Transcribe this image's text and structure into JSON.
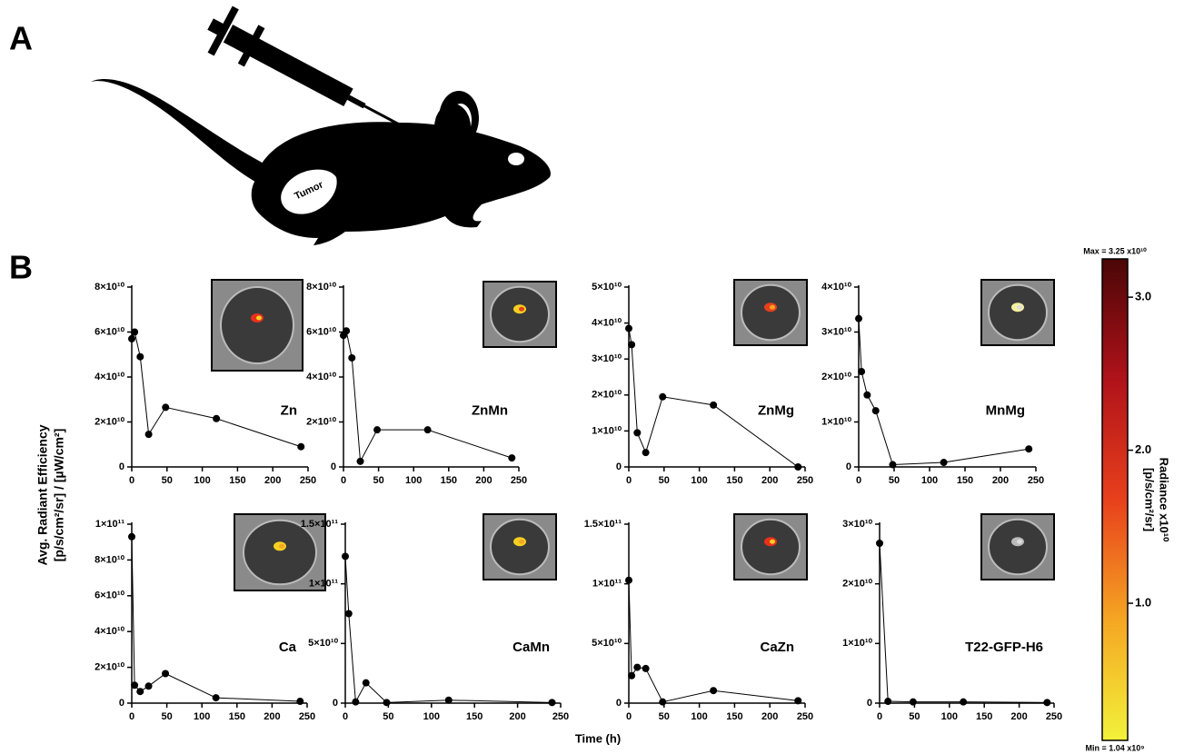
{
  "panel_labels": [
    "A",
    "B"
  ],
  "tumor_label": "Tumor",
  "y_axis_label": [
    "Avg. Radiant Efficiency",
    "[p/s/cm²/sr] / [µW/cm²]"
  ],
  "x_axis_label": "Time (h)",
  "colorbar": {
    "title": [
      "Radiance x10¹⁰",
      "[p/s/cm²/sr]"
    ],
    "max_label": "Max = 3.25 x10¹⁰",
    "min_label": "Min = 1.04 x10⁹",
    "lim": [
      0.104,
      3.25
    ],
    "ticks": [
      {
        "value": 1,
        "label": "1.0"
      },
      {
        "value": 2,
        "label": "2.0"
      },
      {
        "value": 3,
        "label": "3.0"
      }
    ],
    "colors": [
      "#f2f23a",
      "#f5a623",
      "#e8401c",
      "#b0121a",
      "#4a0606"
    ]
  },
  "chart_data": [
    {
      "type": "line",
      "title": "Zn",
      "color": "#000000",
      "x": [
        0,
        4,
        12,
        24,
        48,
        120,
        240
      ],
      "values": [
        57000000000.0,
        60000000000.0,
        49000000000.0,
        14500000000.0,
        26500000000.0,
        21500000000.0,
        9000000000.0
      ],
      "xlim": [
        0,
        250
      ],
      "ylim": [
        0,
        80000000000.0
      ],
      "xticks": [
        0,
        50,
        100,
        150,
        200,
        250
      ],
      "yticks": [
        0,
        {
          "value": 20000000000.0,
          "label": "2×10¹⁰"
        },
        {
          "value": 40000000000.0,
          "label": "4×10¹⁰"
        },
        {
          "value": 60000000000.0,
          "label": "6×10¹⁰"
        },
        {
          "value": 80000000000.0,
          "label": "8×10¹⁰"
        }
      ]
    },
    {
      "type": "line",
      "title": "ZnMn",
      "color": "#000000",
      "x": [
        0,
        4,
        12,
        24,
        48,
        120,
        240
      ],
      "values": [
        58500000000.0,
        60500000000.0,
        48500000000.0,
        2500000000.0,
        16500000000.0,
        16500000000.0,
        4000000000.0
      ],
      "xlim": [
        0,
        250
      ],
      "ylim": [
        0,
        80000000000.0
      ],
      "xticks": [
        0,
        50,
        100,
        150,
        200,
        250
      ],
      "yticks": [
        0,
        {
          "value": 20000000000.0,
          "label": "2×10¹⁰"
        },
        {
          "value": 40000000000.0,
          "label": "4×10¹⁰"
        },
        {
          "value": 60000000000.0,
          "label": "6×10¹⁰"
        },
        {
          "value": 80000000000.0,
          "label": "8×10¹⁰"
        }
      ]
    },
    {
      "type": "line",
      "title": "ZnMg",
      "color": "#000000",
      "x": [
        0,
        4,
        12,
        24,
        48,
        120,
        240
      ],
      "values": [
        38500000000.0,
        34000000000.0,
        9500000000.0,
        4000000000.0,
        19500000000.0,
        17200000000.0,
        0
      ],
      "xlim": [
        0,
        250
      ],
      "ylim": [
        0,
        50000000000.0
      ],
      "xticks": [
        0,
        50,
        100,
        150,
        200,
        250
      ],
      "yticks": [
        0,
        {
          "value": 10000000000.0,
          "label": "1×10¹⁰"
        },
        {
          "value": 20000000000.0,
          "label": "2×10¹⁰"
        },
        {
          "value": 30000000000.0,
          "label": "3×10¹⁰"
        },
        {
          "value": 40000000000.0,
          "label": "4×10¹⁰"
        },
        {
          "value": 50000000000.0,
          "label": "5×10¹⁰"
        }
      ]
    },
    {
      "type": "line",
      "title": "MnMg",
      "color": "#000000",
      "x": [
        0,
        4,
        12,
        24,
        48,
        120,
        240
      ],
      "values": [
        33000000000.0,
        21200000000.0,
        16000000000.0,
        12500000000.0,
        500000000.0,
        1000000000.0,
        4000000000.0
      ],
      "xlim": [
        0,
        250
      ],
      "ylim": [
        0,
        40000000000.0
      ],
      "xticks": [
        0,
        50,
        100,
        150,
        200,
        250
      ],
      "yticks": [
        0,
        {
          "value": 10000000000.0,
          "label": "1×10¹⁰"
        },
        {
          "value": 20000000000.0,
          "label": "2×10¹⁰"
        },
        {
          "value": 30000000000.0,
          "label": "3×10¹⁰"
        },
        {
          "value": 40000000000.0,
          "label": "4×10¹⁰"
        }
      ]
    },
    {
      "type": "line",
      "title": "Ca",
      "color": "#000000",
      "x": [
        0,
        4,
        12,
        24,
        48,
        120,
        240
      ],
      "values": [
        93000000000.0,
        10000000000.0,
        6500000000.0,
        9500000000.0,
        16500000000.0,
        3000000000.0,
        1000000000.0
      ],
      "xlim": [
        0,
        250
      ],
      "ylim": [
        0,
        100000000000.0
      ],
      "xticks": [
        0,
        50,
        100,
        150,
        200,
        250
      ],
      "yticks": [
        0,
        {
          "value": 20000000000.0,
          "label": "2×10¹⁰"
        },
        {
          "value": 40000000000.0,
          "label": "4×10¹⁰"
        },
        {
          "value": 60000000000.0,
          "label": "6×10¹⁰"
        },
        {
          "value": 80000000000.0,
          "label": "8×10¹⁰"
        },
        {
          "value": 100000000000.0,
          "label": "1×10¹¹"
        }
      ]
    },
    {
      "type": "line",
      "title": "CaMn",
      "color": "#000000",
      "x": [
        0,
        4,
        12,
        24,
        48,
        120,
        240
      ],
      "values": [
        123000000000.0,
        75000000000.0,
        1000000000.0,
        17000000000.0,
        500000000.0,
        2500000000.0,
        500000000.0
      ],
      "xlim": [
        0,
        250
      ],
      "ylim": [
        0,
        150000000000.0
      ],
      "xticks": [
        0,
        50,
        100,
        150,
        200,
        250
      ],
      "yticks": [
        0,
        {
          "value": 50000000000.0,
          "label": "5×10¹⁰"
        },
        {
          "value": 100000000000.0,
          "label": "1×10¹¹"
        },
        {
          "value": 150000000000.0,
          "label": "1.5×10¹¹"
        }
      ]
    },
    {
      "type": "line",
      "title": "CaZn",
      "color": "#000000",
      "x": [
        0,
        4,
        12,
        24,
        48,
        120,
        240
      ],
      "values": [
        103000000000.0,
        23000000000.0,
        30000000000.0,
        29000000000.0,
        1000000000.0,
        10500000000.0,
        2000000000.0
      ],
      "xlim": [
        0,
        250
      ],
      "ylim": [
        0,
        150000000000.0
      ],
      "xticks": [
        0,
        50,
        100,
        150,
        200,
        250
      ],
      "yticks": [
        0,
        {
          "value": 50000000000.0,
          "label": "5×10¹⁰"
        },
        {
          "value": 100000000000.0,
          "label": "1×10¹¹"
        },
        {
          "value": 150000000000.0,
          "label": "1.5×10¹¹"
        }
      ]
    },
    {
      "type": "line",
      "title": "T22-GFP-H6",
      "color": "#000000",
      "x": [
        0,
        12,
        48,
        120,
        240
      ],
      "values": [
        26800000000.0,
        300000000.0,
        200000000.0,
        200000000.0,
        100000000.0
      ],
      "xlim": [
        0,
        250
      ],
      "ylim": [
        0,
        30000000000.0
      ],
      "xticks": [
        0,
        50,
        100,
        150,
        200,
        250
      ],
      "yticks": [
        0,
        {
          "value": 10000000000.0,
          "label": "1×10¹⁰"
        },
        {
          "value": 20000000000.0,
          "label": "2×10¹⁰"
        },
        {
          "value": 30000000000.0,
          "label": "3×10¹⁰"
        }
      ]
    }
  ]
}
